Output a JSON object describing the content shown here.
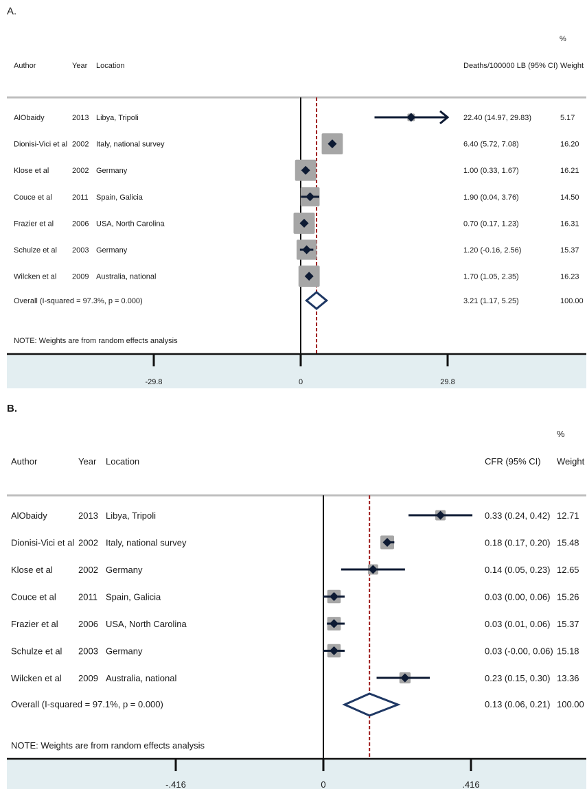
{
  "panels": [
    {
      "label": "A.",
      "headers": {
        "author": "Author",
        "year": "Year",
        "location": "Location",
        "estimate": "Deaths/100000 LB (95% CI)",
        "pct": "%",
        "weight": "Weight"
      },
      "note": "NOTE: Weights are from random effects analysis",
      "overall": {
        "label": "Overall  (I-squared = 97.3%, p = 0.000)",
        "text": "3.21 (1.17, 5.25)",
        "weight": "100.00"
      },
      "ticks": [
        "-29.8",
        "0",
        "29.8"
      ]
    },
    {
      "label": "B.",
      "headers": {
        "author": "Author",
        "year": "Year",
        "location": "Location",
        "estimate": "CFR (95% CI)",
        "pct": "%",
        "weight": "Weight"
      },
      "note": "NOTE: Weights are from random effects analysis",
      "overall": {
        "label": "Overall  (I-squared = 97.1%, p = 0.000)",
        "text": "0.13 (0.06, 0.21)",
        "weight": "100.00"
      },
      "ticks": [
        "-.416",
        "0",
        ".416"
      ]
    }
  ],
  "chart_data": [
    {
      "type": "forest",
      "title": "A.",
      "xlabel": "Deaths/100000 LB (95% CI)",
      "ylabel": "",
      "xlim": [
        -29.8,
        29.8
      ],
      "xticks": [
        -29.8,
        0,
        29.8
      ],
      "null_line": 0,
      "overall_line": 3.21,
      "studies": [
        {
          "author": "AlObaidy",
          "year": "2013",
          "location": "Libya, Tripoli",
          "est": 22.4,
          "lo": 14.97,
          "hi": 29.83,
          "text": "22.40 (14.97, 29.83)",
          "weight": "5.17",
          "arrow_right": true
        },
        {
          "author": "Dionisi-Vici et al",
          "year": "2002",
          "location": "Italy, national survey",
          "est": 6.4,
          "lo": 5.72,
          "hi": 7.08,
          "text": "6.40 (5.72, 7.08)",
          "weight": "16.20"
        },
        {
          "author": "Klose et al",
          "year": "2002",
          "location": "Germany",
          "est": 1.0,
          "lo": 0.33,
          "hi": 1.67,
          "text": "1.00 (0.33, 1.67)",
          "weight": "16.21"
        },
        {
          "author": "Couce et al",
          "year": "2011",
          "location": "Spain, Galicia",
          "est": 1.9,
          "lo": 0.04,
          "hi": 3.76,
          "text": "1.90 (0.04, 3.76)",
          "weight": "14.50"
        },
        {
          "author": "Frazier et al",
          "year": "2006",
          "location": "USA, North Carolina",
          "est": 0.7,
          "lo": 0.17,
          "hi": 1.23,
          "text": "0.70 (0.17, 1.23)",
          "weight": "16.31"
        },
        {
          "author": "Schulze et al",
          "year": "2003",
          "location": "Germany",
          "est": 1.2,
          "lo": -0.16,
          "hi": 2.56,
          "text": "1.20 (-0.16, 2.56)",
          "weight": "15.37"
        },
        {
          "author": "Wilcken et al",
          "year": "2009",
          "location": "Australia, national",
          "est": 1.7,
          "lo": 1.05,
          "hi": 2.35,
          "text": "1.70 (1.05, 2.35)",
          "weight": "16.23"
        }
      ],
      "overall": {
        "est": 3.21,
        "lo": 1.17,
        "hi": 5.25
      }
    },
    {
      "type": "forest",
      "title": "B.",
      "xlabel": "CFR (95% CI)",
      "ylabel": "",
      "xlim": [
        -0.416,
        0.416
      ],
      "xticks": [
        -0.416,
        0,
        0.416
      ],
      "null_line": 0,
      "overall_line": 0.13,
      "studies": [
        {
          "author": "AlObaidy",
          "year": "2013",
          "location": "Libya, Tripoli",
          "est": 0.33,
          "lo": 0.24,
          "hi": 0.42,
          "text": "0.33 (0.24, 0.42)",
          "weight": "12.71"
        },
        {
          "author": "Dionisi-Vici et al",
          "year": "2002",
          "location": "Italy, national survey",
          "est": 0.18,
          "lo": 0.17,
          "hi": 0.2,
          "text": "0.18 (0.17, 0.20)",
          "weight": "15.48"
        },
        {
          "author": "Klose et al",
          "year": "2002",
          "location": "Germany",
          "est": 0.14,
          "lo": 0.05,
          "hi": 0.23,
          "text": "0.14 (0.05, 0.23)",
          "weight": "12.65"
        },
        {
          "author": "Couce et al",
          "year": "2011",
          "location": "Spain, Galicia",
          "est": 0.03,
          "lo": 0.0,
          "hi": 0.06,
          "text": "0.03 (0.00, 0.06)",
          "weight": "15.26"
        },
        {
          "author": "Frazier et al",
          "year": "2006",
          "location": "USA, North Carolina",
          "est": 0.03,
          "lo": 0.01,
          "hi": 0.06,
          "text": "0.03 (0.01, 0.06)",
          "weight": "15.37"
        },
        {
          "author": "Schulze et al",
          "year": "2003",
          "location": "Germany",
          "est": 0.03,
          "lo": -0.0,
          "hi": 0.06,
          "text": "0.03 (-0.00, 0.06)",
          "weight": "15.18"
        },
        {
          "author": "Wilcken et al",
          "year": "2009",
          "location": "Australia, national",
          "est": 0.23,
          "lo": 0.15,
          "hi": 0.3,
          "text": "0.23 (0.15, 0.30)",
          "weight": "13.36"
        }
      ],
      "overall": {
        "est": 0.13,
        "lo": 0.06,
        "hi": 0.21
      }
    }
  ],
  "colors": {
    "marker": "#0d1a33",
    "weight_box": "#a6a6a6",
    "overall_diamond": "#1f3864",
    "overall_line": "#9e1b1b",
    "axis_band": "#e3eef1",
    "header_rule": "#bfbfbf"
  }
}
